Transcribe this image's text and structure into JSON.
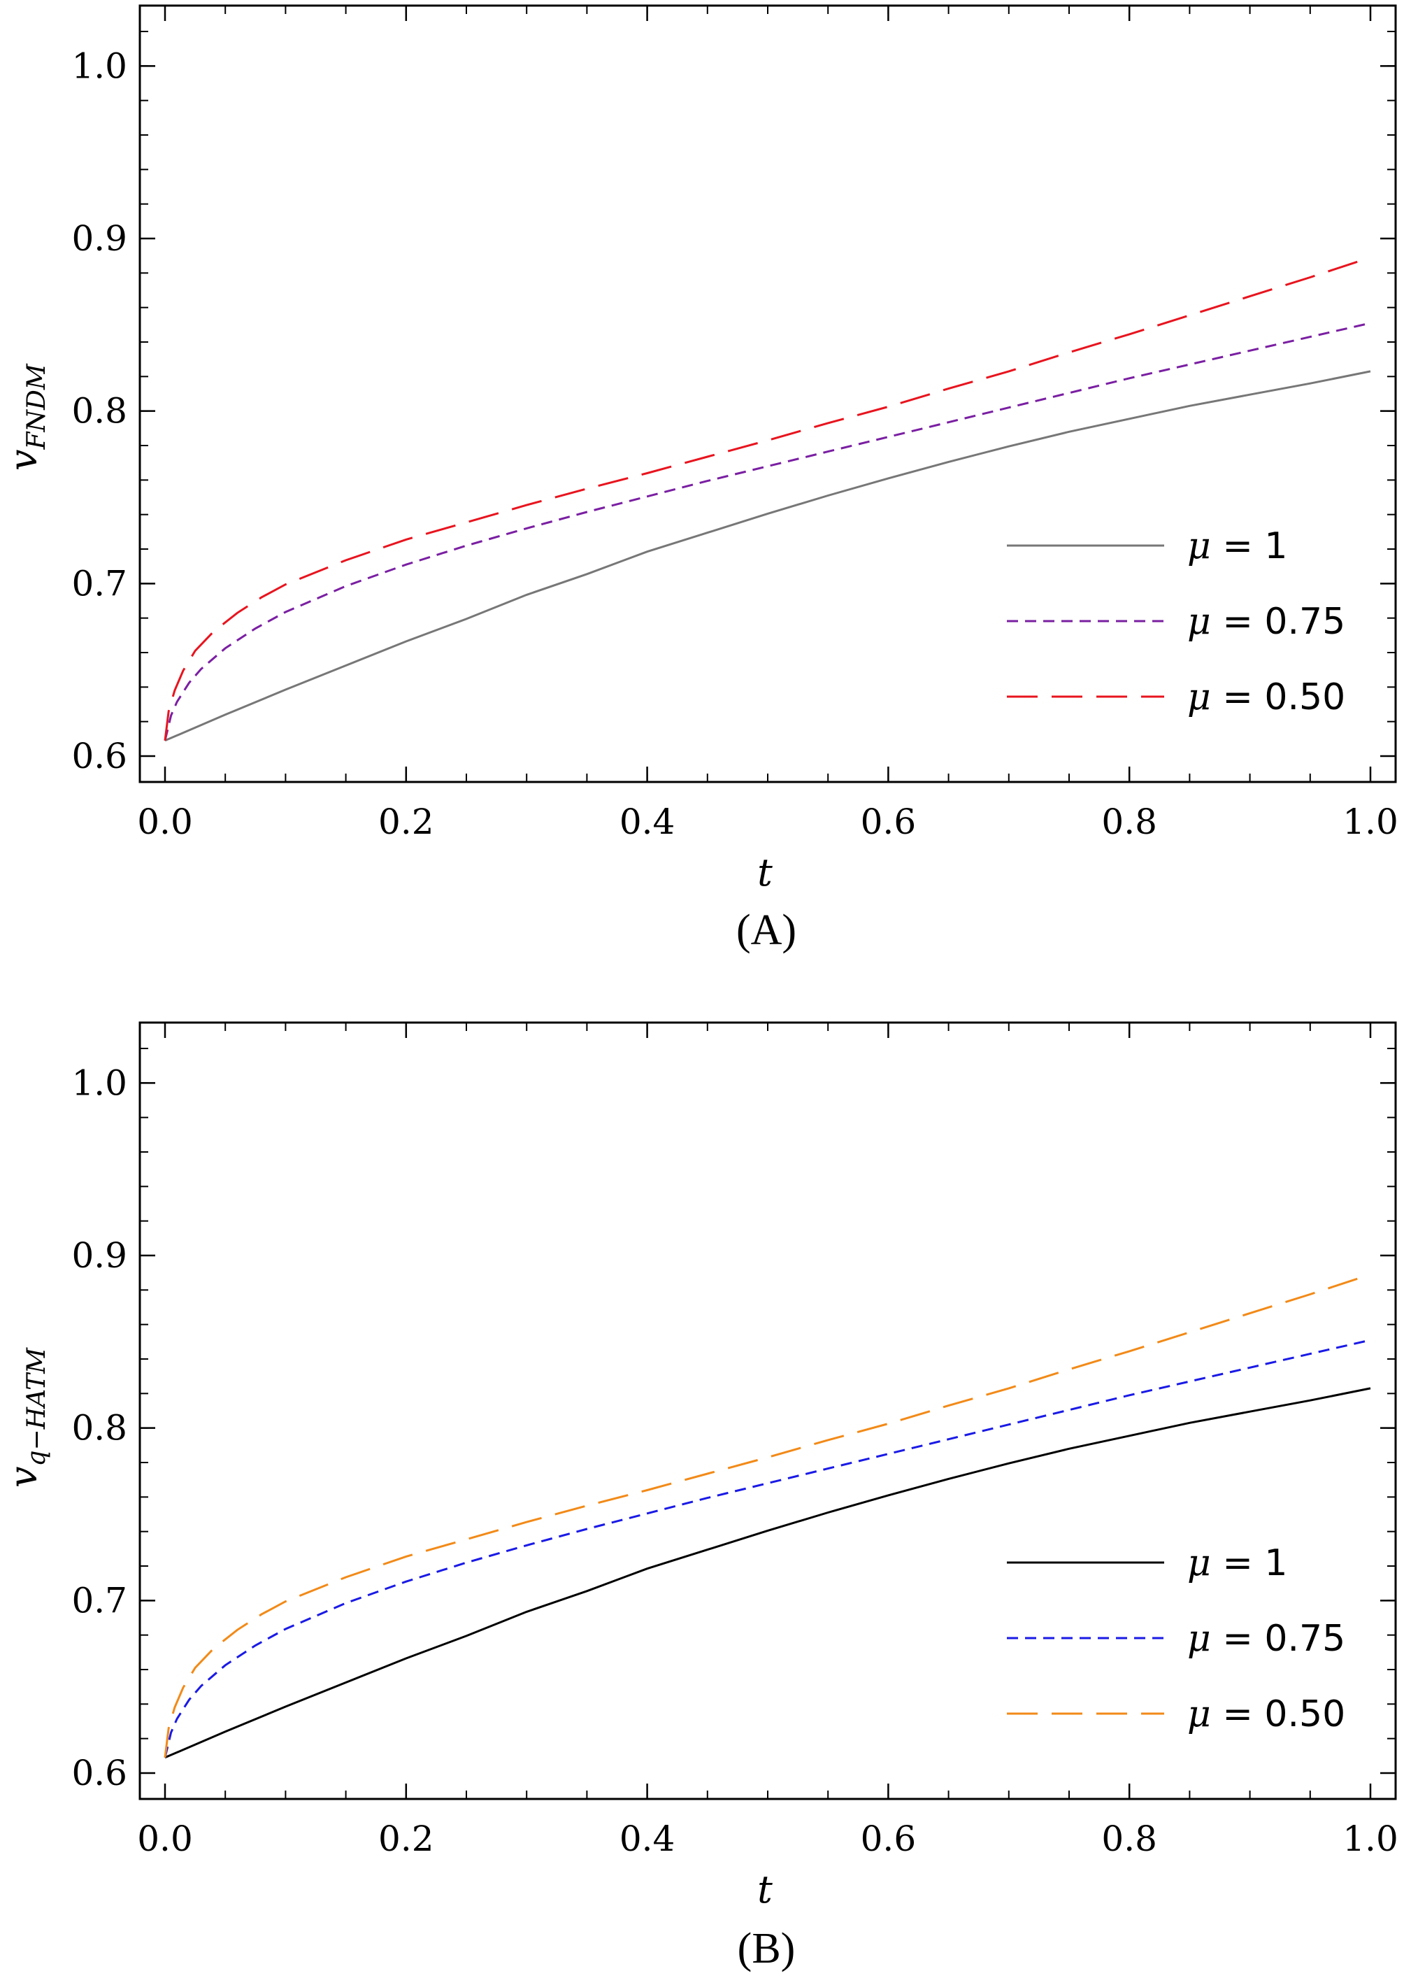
{
  "chart_data": [
    {
      "type": "line",
      "caption": "(A)",
      "xlabel": "t",
      "ylabel_main": "v",
      "ylabel_sub": "FNDM",
      "xlim": [
        0,
        1
      ],
      "ylim": [
        0.585,
        1.035
      ],
      "xticks": [
        0.0,
        0.2,
        0.4,
        0.6,
        0.8,
        1.0
      ],
      "xtick_labels": [
        "0.0",
        "0.2",
        "0.4",
        "0.6",
        "0.8",
        "1.0"
      ],
      "yticks": [
        0.6,
        0.7,
        0.8,
        0.9,
        1.0
      ],
      "ytick_labels": [
        "0.6",
        "0.7",
        "0.8",
        "0.9",
        "1.0"
      ],
      "x_minor_step": 0.05,
      "y_minor_step": 0.02,
      "grid": false,
      "legend_position": "bottom-right",
      "series": [
        {
          "name": "μ = 1",
          "mu": "μ",
          "rest": " = 1",
          "color": "#777777",
          "dash": "none",
          "points": [
            [
              0,
              0.609
            ],
            [
              0.05,
              0.624
            ],
            [
              0.1,
              0.6385
            ],
            [
              0.15,
              0.6525
            ],
            [
              0.2,
              0.6665
            ],
            [
              0.25,
              0.6795
            ],
            [
              0.3,
              0.6935
            ],
            [
              0.35,
              0.7055
            ],
            [
              0.4,
              0.7185
            ],
            [
              0.45,
              0.7295
            ],
            [
              0.5,
              0.7405
            ],
            [
              0.55,
              0.751
            ],
            [
              0.6,
              0.761
            ],
            [
              0.65,
              0.7705
            ],
            [
              0.7,
              0.7795
            ],
            [
              0.75,
              0.788
            ],
            [
              0.8,
              0.7955
            ],
            [
              0.85,
              0.803
            ],
            [
              0.9,
              0.8095
            ],
            [
              0.95,
              0.816
            ],
            [
              1.0,
              0.823
            ]
          ]
        },
        {
          "name": "μ = 0.75",
          "mu": "μ",
          "rest": " = 0.75",
          "color": "#7a1fa2",
          "dash": "16 10",
          "points": [
            [
              0,
              0.609
            ],
            [
              0.005,
              0.6235
            ],
            [
              0.01,
              0.6315
            ],
            [
              0.02,
              0.6425
            ],
            [
              0.03,
              0.6505
            ],
            [
              0.05,
              0.6625
            ],
            [
              0.075,
              0.674
            ],
            [
              0.1,
              0.6835
            ],
            [
              0.15,
              0.6985
            ],
            [
              0.2,
              0.711
            ],
            [
              0.25,
              0.722
            ],
            [
              0.3,
              0.732
            ],
            [
              0.35,
              0.7415
            ],
            [
              0.4,
              0.7505
            ],
            [
              0.45,
              0.7595
            ],
            [
              0.5,
              0.768
            ],
            [
              0.55,
              0.7765
            ],
            [
              0.6,
              0.785
            ],
            [
              0.65,
              0.7935
            ],
            [
              0.7,
              0.802
            ],
            [
              0.75,
              0.8105
            ],
            [
              0.8,
              0.819
            ],
            [
              0.85,
              0.827
            ],
            [
              0.9,
              0.835
            ],
            [
              0.95,
              0.843
            ],
            [
              1.0,
              0.851
            ]
          ]
        },
        {
          "name": "μ = 0.50",
          "mu": "μ",
          "rest": " = 0.50",
          "color": "#e8141e",
          "dash": "44 20",
          "points": [
            [
              0,
              0.609
            ],
            [
              0.003,
              0.626
            ],
            [
              0.008,
              0.638
            ],
            [
              0.015,
              0.6495
            ],
            [
              0.025,
              0.661
            ],
            [
              0.04,
              0.672
            ],
            [
              0.06,
              0.683
            ],
            [
              0.08,
              0.692
            ],
            [
              0.1,
              0.6995
            ],
            [
              0.15,
              0.7135
            ],
            [
              0.2,
              0.7255
            ],
            [
              0.25,
              0.7355
            ],
            [
              0.3,
              0.7455
            ],
            [
              0.35,
              0.755
            ],
            [
              0.4,
              0.764
            ],
            [
              0.45,
              0.7735
            ],
            [
              0.5,
              0.783
            ],
            [
              0.55,
              0.793
            ],
            [
              0.6,
              0.8025
            ],
            [
              0.65,
              0.813
            ],
            [
              0.7,
              0.823
            ],
            [
              0.75,
              0.834
            ],
            [
              0.8,
              0.8445
            ],
            [
              0.85,
              0.8555
            ],
            [
              0.9,
              0.8665
            ],
            [
              0.95,
              0.8775
            ],
            [
              1.0,
              0.889
            ]
          ]
        }
      ]
    },
    {
      "type": "line",
      "caption": "(B)",
      "xlabel": "t",
      "ylabel_main": "v",
      "ylabel_sub": "q−HATM",
      "xlim": [
        0,
        1
      ],
      "ylim": [
        0.585,
        1.035
      ],
      "xticks": [
        0.0,
        0.2,
        0.4,
        0.6,
        0.8,
        1.0
      ],
      "xtick_labels": [
        "0.0",
        "0.2",
        "0.4",
        "0.6",
        "0.8",
        "1.0"
      ],
      "yticks": [
        0.6,
        0.7,
        0.8,
        0.9,
        1.0
      ],
      "ytick_labels": [
        "0.6",
        "0.7",
        "0.8",
        "0.9",
        "1.0"
      ],
      "x_minor_step": 0.05,
      "y_minor_step": 0.02,
      "grid": false,
      "legend_position": "bottom-right",
      "series": [
        {
          "name": "μ = 1",
          "mu": "μ",
          "rest": " = 1",
          "color": "#000000",
          "dash": "none",
          "points": [
            [
              0,
              0.609
            ],
            [
              0.05,
              0.624
            ],
            [
              0.1,
              0.6385
            ],
            [
              0.15,
              0.6525
            ],
            [
              0.2,
              0.6665
            ],
            [
              0.25,
              0.6795
            ],
            [
              0.3,
              0.6935
            ],
            [
              0.35,
              0.7055
            ],
            [
              0.4,
              0.7185
            ],
            [
              0.45,
              0.7295
            ],
            [
              0.5,
              0.7405
            ],
            [
              0.55,
              0.751
            ],
            [
              0.6,
              0.761
            ],
            [
              0.65,
              0.7705
            ],
            [
              0.7,
              0.7795
            ],
            [
              0.75,
              0.788
            ],
            [
              0.8,
              0.7955
            ],
            [
              0.85,
              0.803
            ],
            [
              0.9,
              0.8095
            ],
            [
              0.95,
              0.816
            ],
            [
              1.0,
              0.823
            ]
          ]
        },
        {
          "name": "μ = 0.75",
          "mu": "μ",
          "rest": " = 0.75",
          "color": "#1a1ae6",
          "dash": "16 10",
          "points": [
            [
              0,
              0.609
            ],
            [
              0.005,
              0.6235
            ],
            [
              0.01,
              0.6315
            ],
            [
              0.02,
              0.6425
            ],
            [
              0.03,
              0.6505
            ],
            [
              0.05,
              0.6625
            ],
            [
              0.075,
              0.674
            ],
            [
              0.1,
              0.6835
            ],
            [
              0.15,
              0.6985
            ],
            [
              0.2,
              0.711
            ],
            [
              0.25,
              0.722
            ],
            [
              0.3,
              0.732
            ],
            [
              0.35,
              0.7415
            ],
            [
              0.4,
              0.7505
            ],
            [
              0.45,
              0.7595
            ],
            [
              0.5,
              0.768
            ],
            [
              0.55,
              0.7765
            ],
            [
              0.6,
              0.785
            ],
            [
              0.65,
              0.7935
            ],
            [
              0.7,
              0.802
            ],
            [
              0.75,
              0.8105
            ],
            [
              0.8,
              0.819
            ],
            [
              0.85,
              0.827
            ],
            [
              0.9,
              0.835
            ],
            [
              0.95,
              0.843
            ],
            [
              1.0,
              0.851
            ]
          ]
        },
        {
          "name": "μ = 0.50",
          "mu": "μ",
          "rest": " = 0.50",
          "color": "#f28a18",
          "dash": "44 20",
          "points": [
            [
              0,
              0.609
            ],
            [
              0.003,
              0.626
            ],
            [
              0.008,
              0.638
            ],
            [
              0.015,
              0.6495
            ],
            [
              0.025,
              0.661
            ],
            [
              0.04,
              0.672
            ],
            [
              0.06,
              0.683
            ],
            [
              0.08,
              0.692
            ],
            [
              0.1,
              0.6995
            ],
            [
              0.15,
              0.7135
            ],
            [
              0.2,
              0.7255
            ],
            [
              0.25,
              0.7355
            ],
            [
              0.3,
              0.7455
            ],
            [
              0.35,
              0.755
            ],
            [
              0.4,
              0.764
            ],
            [
              0.45,
              0.7735
            ],
            [
              0.5,
              0.783
            ],
            [
              0.55,
              0.793
            ],
            [
              0.6,
              0.8025
            ],
            [
              0.65,
              0.813
            ],
            [
              0.7,
              0.823
            ],
            [
              0.75,
              0.834
            ],
            [
              0.8,
              0.8445
            ],
            [
              0.85,
              0.8555
            ],
            [
              0.9,
              0.8665
            ],
            [
              0.95,
              0.8775
            ],
            [
              1.0,
              0.889
            ]
          ]
        }
      ]
    }
  ]
}
